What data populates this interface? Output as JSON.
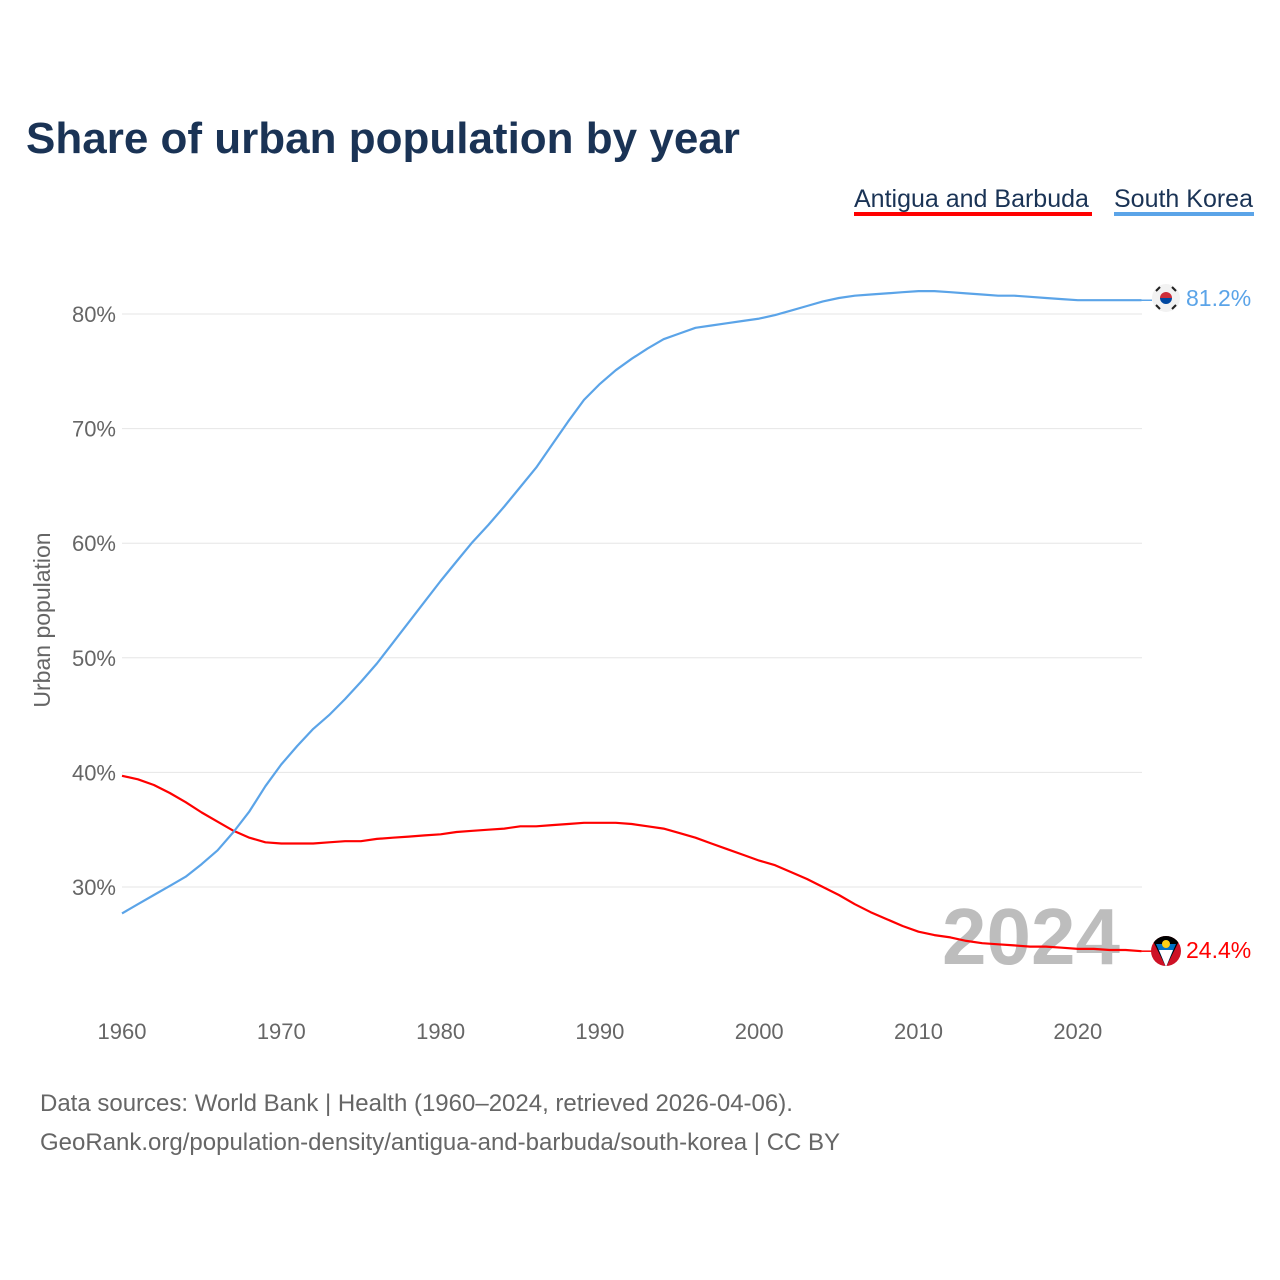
{
  "chart_data": {
    "type": "line",
    "title": "Share of urban population by year",
    "ylabel": "Urban population",
    "xlabel": "",
    "ylim": [
      20,
      85
    ],
    "xlim": [
      1960,
      2024
    ],
    "grid": true,
    "legend_placement": "top-right",
    "y_ticks": [
      30,
      40,
      50,
      60,
      70,
      80
    ],
    "y_tick_labels": [
      "30%",
      "40%",
      "50%",
      "60%",
      "70%",
      "80%"
    ],
    "x_ticks": [
      1960,
      1970,
      1980,
      1990,
      2000,
      2010,
      2020
    ],
    "x_tick_labels": [
      "1960",
      "1970",
      "1980",
      "1990",
      "2000",
      "2010",
      "2020"
    ],
    "year_watermark": "2024",
    "x": [
      1960,
      1961,
      1962,
      1963,
      1964,
      1965,
      1966,
      1967,
      1968,
      1969,
      1970,
      1971,
      1972,
      1973,
      1974,
      1975,
      1976,
      1977,
      1978,
      1979,
      1980,
      1981,
      1982,
      1983,
      1984,
      1985,
      1986,
      1987,
      1988,
      1989,
      1990,
      1991,
      1992,
      1993,
      1994,
      1995,
      1996,
      1997,
      1998,
      1999,
      2000,
      2001,
      2002,
      2003,
      2004,
      2005,
      2006,
      2007,
      2008,
      2009,
      2010,
      2011,
      2012,
      2013,
      2014,
      2015,
      2016,
      2017,
      2018,
      2019,
      2020,
      2021,
      2022,
      2023,
      2024
    ],
    "series": [
      {
        "name": "Antigua and Barbuda",
        "color": "#ff0000",
        "end_label": "24.4%",
        "values": [
          39.7,
          39.4,
          38.9,
          38.2,
          37.4,
          36.5,
          35.7,
          34.9,
          34.3,
          33.9,
          33.8,
          33.8,
          33.8,
          33.9,
          34.0,
          34.0,
          34.2,
          34.3,
          34.4,
          34.5,
          34.6,
          34.8,
          34.9,
          35.0,
          35.1,
          35.3,
          35.3,
          35.4,
          35.5,
          35.6,
          35.6,
          35.6,
          35.5,
          35.3,
          35.1,
          34.7,
          34.3,
          33.8,
          33.3,
          32.8,
          32.3,
          31.9,
          31.3,
          30.7,
          30.0,
          29.3,
          28.5,
          27.8,
          27.2,
          26.6,
          26.1,
          25.8,
          25.6,
          25.3,
          25.1,
          25.0,
          24.9,
          24.8,
          24.8,
          24.7,
          24.6,
          24.6,
          24.5,
          24.5,
          24.4
        ]
      },
      {
        "name": "South Korea",
        "color": "#5ba4e8",
        "end_label": "81.2%",
        "values": [
          27.7,
          28.5,
          29.3,
          30.1,
          30.9,
          32.0,
          33.2,
          34.8,
          36.6,
          38.8,
          40.7,
          42.3,
          43.8,
          45.0,
          46.4,
          47.9,
          49.5,
          51.3,
          53.1,
          54.9,
          56.7,
          58.4,
          60.1,
          61.6,
          63.2,
          64.9,
          66.6,
          68.6,
          70.6,
          72.5,
          73.9,
          75.1,
          76.1,
          77.0,
          77.8,
          78.3,
          78.8,
          79.0,
          79.2,
          79.4,
          79.6,
          79.9,
          80.3,
          80.7,
          81.1,
          81.4,
          81.6,
          81.7,
          81.8,
          81.9,
          82.0,
          82.0,
          81.9,
          81.8,
          81.7,
          81.6,
          81.6,
          81.5,
          81.4,
          81.3,
          81.2,
          81.2,
          81.2,
          81.2,
          81.2
        ]
      }
    ]
  },
  "footer": {
    "line1": "Data sources: World Bank | Health (1960–2024, retrieved 2026-04-06).",
    "line2": "GeoRank.org/population-density/antigua-and-barbuda/south-korea | CC BY"
  }
}
